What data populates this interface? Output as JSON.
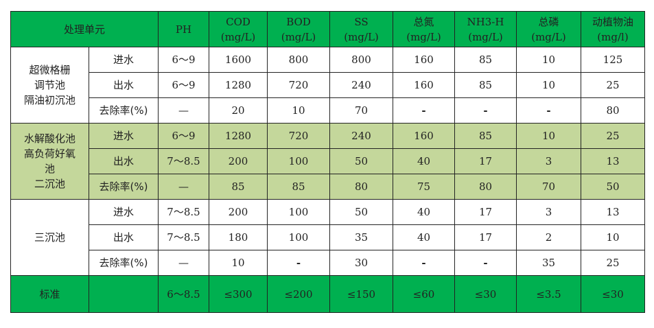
{
  "header": {
    "unit": "处理单元",
    "columns": [
      {
        "name": "PH",
        "unit": ""
      },
      {
        "name": "COD",
        "unit": "(mg/L)"
      },
      {
        "name": "BOD",
        "unit": "(mg/L)"
      },
      {
        "name": "SS",
        "unit": "(mg/L)"
      },
      {
        "name": "总氮",
        "unit": "(mg/L)"
      },
      {
        "name": "NH3-H",
        "unit": "(mg/L)"
      },
      {
        "name": "总磷",
        "unit": "(mg/L)"
      },
      {
        "name": "动植物油",
        "unit": "(mg/l)"
      }
    ]
  },
  "groups": [
    {
      "name_lines": [
        "超微格栅",
        "调节池",
        "隔油初沉池"
      ],
      "rows": [
        {
          "label": "进水",
          "values": [
            "6～9",
            "1600",
            "800",
            "800",
            "160",
            "85",
            "10",
            "125"
          ]
        },
        {
          "label": "出水",
          "values": [
            "6～9",
            "1280",
            "720",
            "240",
            "160",
            "85",
            "10",
            "25"
          ]
        },
        {
          "label": "去除率(%)",
          "values": [
            "—",
            "20",
            "10",
            "70",
            "-",
            "-",
            "-",
            "80"
          ]
        }
      ]
    },
    {
      "name_lines": [
        "水解酸化池",
        "高负荷好氧",
        "池",
        "二沉池"
      ],
      "rows": [
        {
          "label": "进水",
          "values": [
            "6～9",
            "1280",
            "720",
            "240",
            "160",
            "85",
            "10",
            "25"
          ]
        },
        {
          "label": "出水",
          "values": [
            "7～8.5",
            "200",
            "100",
            "50",
            "40",
            "17",
            "3",
            "13"
          ]
        },
        {
          "label": "去除率(%)",
          "values": [
            "—",
            "85",
            "85",
            "80",
            "75",
            "80",
            "70",
            "50"
          ]
        }
      ]
    },
    {
      "name_lines": [
        "三沉池"
      ],
      "rows": [
        {
          "label": "进水",
          "values": [
            "7～8.5",
            "200",
            "100",
            "50",
            "40",
            "17",
            "3",
            "13"
          ]
        },
        {
          "label": "出水",
          "values": [
            "7～8.5",
            "180",
            "100",
            "35",
            "40",
            "17",
            "2",
            "10"
          ]
        },
        {
          "label": "去除率(%)",
          "values": [
            "—",
            "10",
            "-",
            "30",
            "-",
            "-",
            "35",
            "25"
          ]
        }
      ]
    }
  ],
  "standard": {
    "label": "标准",
    "sub_label": "",
    "values": [
      "6～8.5",
      "≤300",
      "≤200",
      "≤150",
      "≤60",
      "≤30",
      "≤3.5",
      "≤30"
    ]
  },
  "colors": {
    "header_bg": "#00b050",
    "group2_bg": "#c4d79b",
    "standard_bg": "#00b050"
  }
}
